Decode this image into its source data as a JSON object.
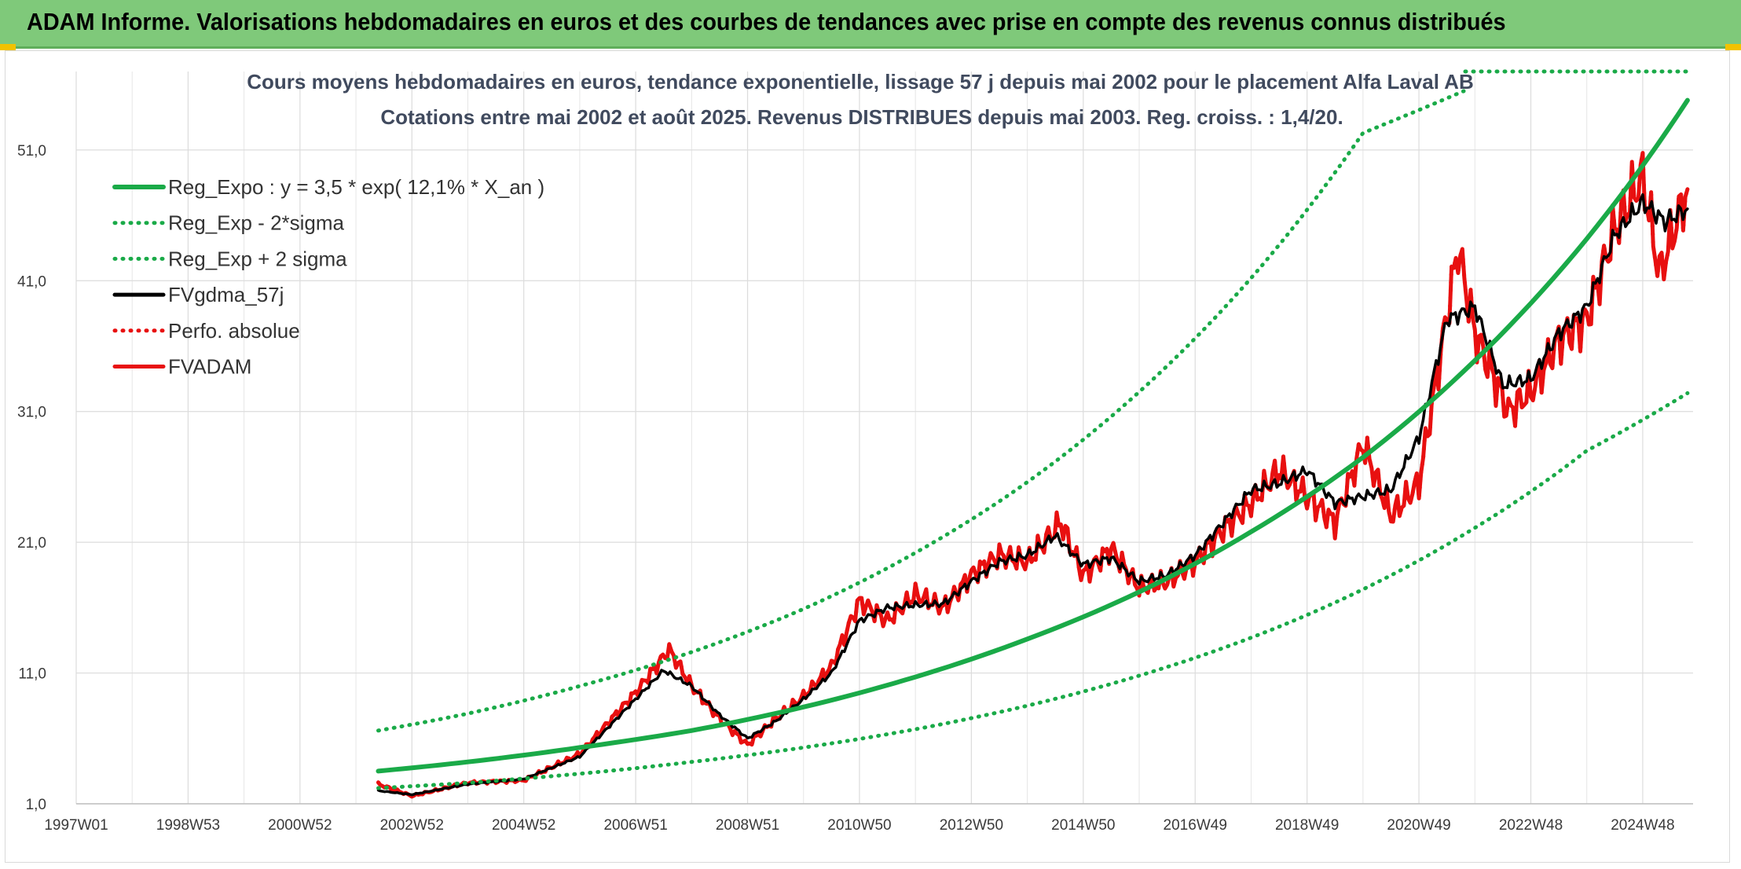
{
  "header": {
    "title": "ADAM Informe. Valorisations hebdomadaires en euros et des courbes de tendances avec prise en compte des revenus connus distribués"
  },
  "chart_data": {
    "type": "line",
    "title": "Cours moyens hebdomadaires en euros, tendance exponentielle, lissage 57 j depuis mai 2002 pour le placement Alfa Laval AB",
    "subtitle": "Cotations entre mai 2002 et août 2025. Revenus DISTRIBUES depuis mai 2003. Reg. croiss. : 1,4/20.",
    "xlabel": "",
    "ylabel": "",
    "xlim": [
      1997.0,
      2025.9
    ],
    "ylim": [
      1.0,
      57.0
    ],
    "grid": true,
    "legend_position": "top-left",
    "x_tick_labels": [
      "1997W01",
      "1998W53",
      "2000W52",
      "2002W52",
      "2004W52",
      "2006W51",
      "2008W51",
      "2010W50",
      "2012W50",
      "2014W50",
      "2016W49",
      "2018W49",
      "2020W49",
      "2022W48",
      "2024W48"
    ],
    "x_tick_values": [
      1997.0,
      1999.0,
      2001.0,
      2003.0,
      2005.0,
      2007.0,
      2009.0,
      2011.0,
      2013.0,
      2015.0,
      2017.0,
      2019.0,
      2021.0,
      2023.0,
      2025.0
    ],
    "y_tick_labels": [
      "1,0",
      "11,0",
      "21,0",
      "31,0",
      "41,0",
      "51,0"
    ],
    "y_tick_values": [
      1,
      11,
      21,
      31,
      41,
      51
    ],
    "series": [
      {
        "name": "Reg_Expo : y = 3,5 * exp( 12,1% *  X_an )",
        "style": "solid",
        "color": "#1aaa48",
        "x": [
          2002.4,
          2004.0,
          2006.0,
          2008.0,
          2010.0,
          2012.0,
          2014.0,
          2016.0,
          2018.0,
          2020.0,
          2022.0,
          2024.0,
          2025.8
        ],
        "y": [
          3.5,
          4.2,
          5.3,
          6.6,
          8.4,
          10.7,
          13.6,
          17.2,
          21.8,
          27.5,
          34.9,
          44.2,
          54.8
        ]
      },
      {
        "name": "Reg_Exp - 2*sigma",
        "style": "dotted",
        "color": "#1aaa48",
        "x": [
          2002.4,
          2004.0,
          2006.0,
          2008.0,
          2010.0,
          2012.0,
          2014.0,
          2016.0,
          2018.0,
          2020.0,
          2022.0,
          2024.0,
          2025.8
        ],
        "y": [
          2.2,
          2.6,
          3.3,
          4.2,
          5.3,
          6.7,
          8.5,
          10.8,
          13.7,
          17.4,
          22.1,
          28.0,
          32.4
        ]
      },
      {
        "name": "Reg_Exp + 2 sigma",
        "style": "dotted",
        "color": "#1aaa48",
        "x": [
          2002.4,
          2004.0,
          2006.0,
          2008.0,
          2010.0,
          2012.0,
          2014.0,
          2016.0,
          2018.0,
          2020.0,
          2021.8
        ],
        "y": [
          6.6,
          7.9,
          10.0,
          12.6,
          15.9,
          20.2,
          25.6,
          32.5,
          41.2,
          52.3,
          55.5
        ]
      },
      {
        "name": "FVgdma_57j",
        "style": "solid",
        "color": "#000000",
        "x": [
          2002.4,
          2003.0,
          2004.0,
          2005.0,
          2006.0,
          2007.0,
          2007.5,
          2008.0,
          2008.5,
          2009.0,
          2009.5,
          2010.0,
          2010.5,
          2011.0,
          2011.5,
          2012.0,
          2012.5,
          2013.0,
          2013.5,
          2014.0,
          2014.5,
          2015.0,
          2015.5,
          2016.0,
          2016.5,
          2017.0,
          2017.5,
          2018.0,
          2018.5,
          2019.0,
          2019.5,
          2020.0,
          2020.5,
          2021.0,
          2021.5,
          2022.0,
          2022.5,
          2023.0,
          2023.5,
          2024.0,
          2024.5,
          2025.0,
          2025.4,
          2025.8
        ],
        "y": [
          2.0,
          1.7,
          2.5,
          2.9,
          4.6,
          9.0,
          11.2,
          10.0,
          7.8,
          6.0,
          7.3,
          9.0,
          11.0,
          15.0,
          16.0,
          16.2,
          16.3,
          18.0,
          19.5,
          20.0,
          21.5,
          19.3,
          19.8,
          18.0,
          18.5,
          20.0,
          22.5,
          25.0,
          25.5,
          26.5,
          24.0,
          24.5,
          25.0,
          29.0,
          38.0,
          39.0,
          33.0,
          33.5,
          37.0,
          39.0,
          44.5,
          47.0,
          45.5,
          46.5
        ]
      },
      {
        "name": "Perfo. absolue",
        "style": "dotted",
        "color": "#e81010",
        "x": [
          2002.4,
          2003.0,
          2004.0,
          2005.0,
          2006.0,
          2007.0,
          2007.6,
          2008.0,
          2008.5,
          2009.0,
          2009.5,
          2010.0,
          2010.5,
          2011.0,
          2011.5,
          2012.0,
          2012.5,
          2013.0,
          2013.5,
          2014.0,
          2014.6,
          2015.0,
          2015.5,
          2016.0,
          2016.5,
          2017.0,
          2017.5,
          2018.0,
          2018.5,
          2019.0,
          2019.5,
          2020.0,
          2020.5,
          2021.0,
          2021.7,
          2022.0,
          2022.6,
          2023.0,
          2023.5,
          2024.0,
          2024.5,
          2025.0,
          2025.3,
          2025.8
        ],
        "y": [
          2.5,
          1.6,
          2.6,
          2.8,
          4.8,
          9.5,
          12.8,
          10.0,
          7.5,
          5.5,
          7.5,
          9.2,
          11.5,
          16.5,
          15.0,
          17.0,
          16.0,
          18.5,
          20.0,
          19.5,
          22.5,
          18.5,
          20.5,
          17.5,
          18.0,
          19.5,
          22.0,
          24.0,
          26.5,
          24.5,
          22.5,
          28.5,
          23.0,
          25.5,
          43.5,
          37.0,
          31.0,
          32.5,
          36.5,
          38.0,
          45.0,
          49.0,
          41.5,
          48.0
        ]
      },
      {
        "name": "FVADAM",
        "style": "solid",
        "color": "#e81010",
        "x": [
          2002.4,
          2003.0,
          2004.0,
          2005.0,
          2006.0,
          2007.0,
          2007.6,
          2008.0,
          2008.5,
          2009.0,
          2009.5,
          2010.0,
          2010.5,
          2011.0,
          2011.5,
          2012.0,
          2012.5,
          2013.0,
          2013.5,
          2014.0,
          2014.6,
          2015.0,
          2015.5,
          2016.0,
          2016.5,
          2017.0,
          2017.5,
          2018.0,
          2018.5,
          2019.0,
          2019.5,
          2020.0,
          2020.5,
          2021.0,
          2021.7,
          2022.0,
          2022.6,
          2023.0,
          2023.5,
          2024.0,
          2024.5,
          2025.0,
          2025.3,
          2025.8
        ],
        "y": [
          2.5,
          1.6,
          2.6,
          2.8,
          4.8,
          9.5,
          12.8,
          10.0,
          7.5,
          5.5,
          7.5,
          9.2,
          11.5,
          16.5,
          15.0,
          17.0,
          16.0,
          18.5,
          20.0,
          19.5,
          22.5,
          18.5,
          20.5,
          17.5,
          18.0,
          19.5,
          22.0,
          24.0,
          26.5,
          24.5,
          22.5,
          28.5,
          23.0,
          25.5,
          43.5,
          37.0,
          31.0,
          32.5,
          36.5,
          38.0,
          45.0,
          49.0,
          41.5,
          48.0
        ]
      }
    ]
  }
}
